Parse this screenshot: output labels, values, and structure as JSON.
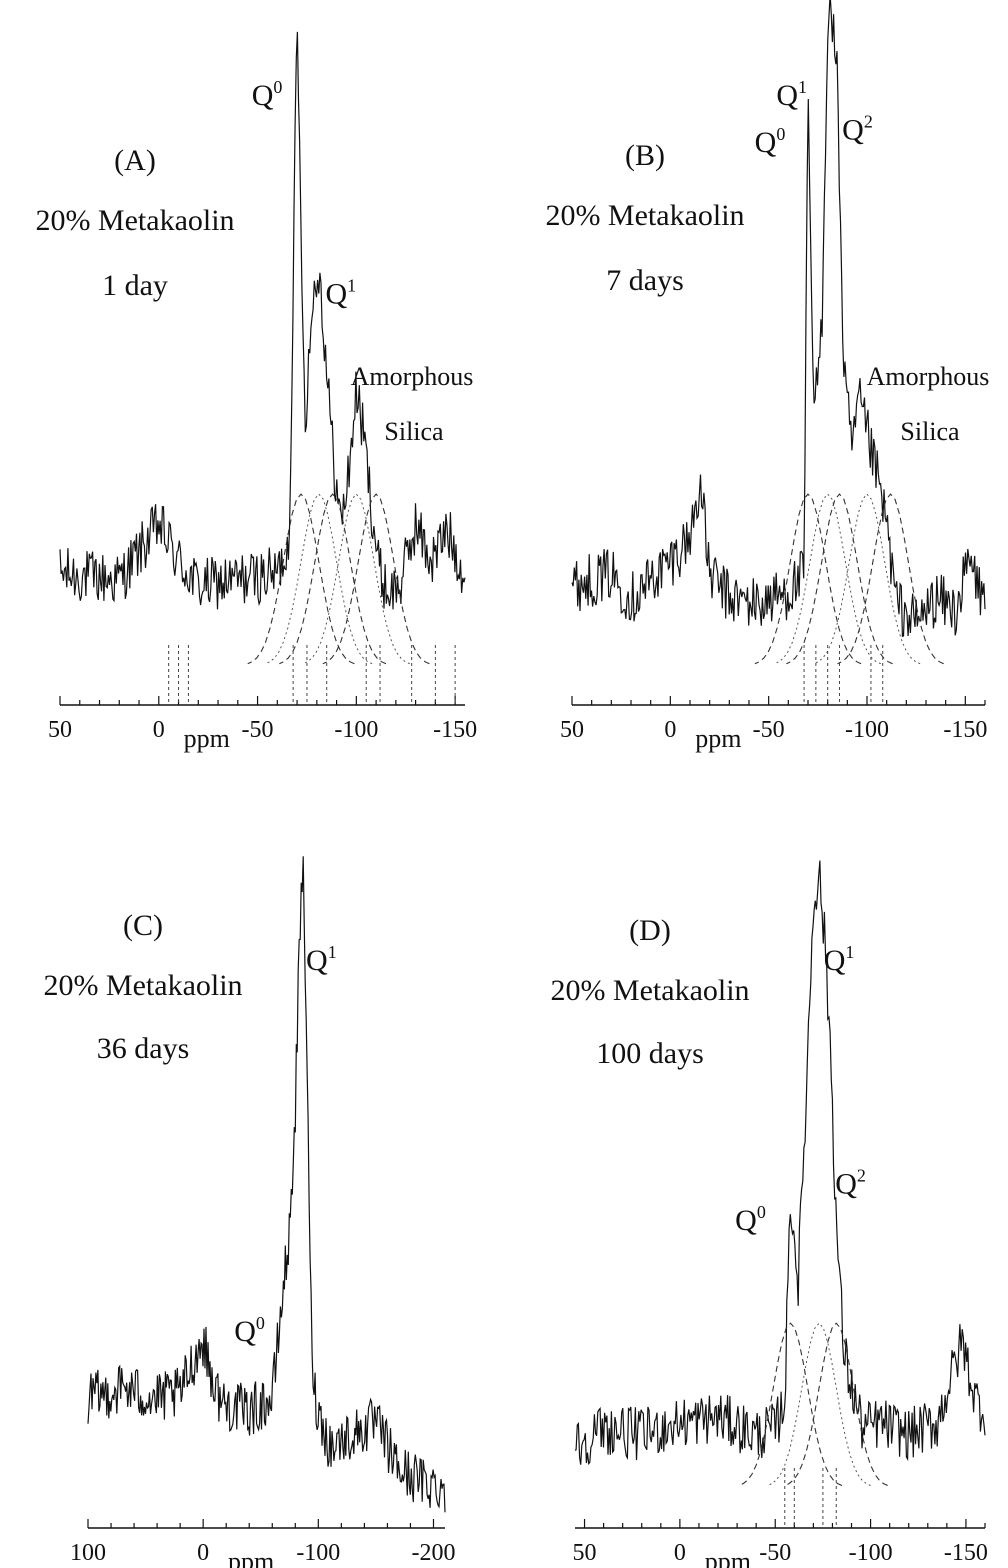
{
  "chart_data": [
    {
      "type": "line",
      "panel": "(A)",
      "label_lines": [
        "20% Metakaolin",
        "1 day"
      ],
      "xlabel": "ppm",
      "xlim": [
        50,
        -155
      ],
      "x_ticks": [
        50,
        0,
        -50,
        -100,
        -150
      ],
      "series": [
        {
          "x": [
            50,
            20,
            0,
            -10,
            -20,
            -40,
            -60,
            -66,
            -70,
            -74,
            -78,
            -81,
            -84,
            -88,
            -92,
            -96,
            -100,
            -104,
            -108,
            -112,
            -116,
            -122,
            -130,
            -138,
            -146,
            -155
          ],
          "y": [
            0.1,
            0.09,
            0.18,
            0.12,
            0.08,
            0.09,
            0.1,
            0.15,
            1.0,
            0.35,
            0.55,
            0.6,
            0.48,
            0.3,
            0.18,
            0.26,
            0.4,
            0.32,
            0.2,
            0.1,
            0.07,
            0.08,
            0.18,
            0.12,
            0.17,
            0.1
          ]
        }
      ],
      "peaks": [
        {
          "label": "Q",
          "sup": "0",
          "x": -70
        },
        {
          "label": "Q",
          "sup": "1",
          "x": -81
        }
      ],
      "annotation_lines": [
        "Amorphous",
        "Silica"
      ],
      "fit_components_center": [
        -72,
        -81,
        -88,
        -100,
        -110
      ],
      "marker_x": [
        -5,
        -10,
        -15,
        -68,
        -75,
        -85,
        -105,
        -112,
        -128,
        -140,
        -150
      ]
    },
    {
      "type": "line",
      "panel": "(B)",
      "label_lines": [
        "20% Metakaolin",
        "7 days"
      ],
      "xlabel": "ppm",
      "xlim": [
        50,
        -160
      ],
      "x_ticks": [
        50,
        0,
        -50,
        -100,
        -150
      ],
      "series": [
        {
          "x": [
            50,
            30,
            20,
            10,
            0,
            -10,
            -15,
            -20,
            -30,
            -45,
            -60,
            -68,
            -70,
            -73,
            -77,
            -80,
            -82,
            -85,
            -88,
            -92,
            -96,
            -100,
            -105,
            -110,
            -115,
            -125,
            -135,
            -145,
            -152,
            -160
          ],
          "y": [
            0.08,
            0.1,
            0.06,
            0.09,
            0.12,
            0.16,
            0.25,
            0.1,
            0.06,
            0.05,
            0.07,
            0.1,
            0.88,
            0.35,
            0.5,
            1.0,
            1.02,
            0.9,
            0.45,
            0.3,
            0.38,
            0.33,
            0.26,
            0.18,
            0.05,
            0.02,
            0.06,
            0.04,
            0.12,
            0.05
          ]
        }
      ],
      "peaks": [
        {
          "label": "Q",
          "sup": "0",
          "x": -70
        },
        {
          "label": "Q",
          "sup": "1",
          "x": -80
        },
        {
          "label": "Q",
          "sup": "2",
          "x": -85
        }
      ],
      "annotation_lines": [
        "Amorphous",
        "Silica"
      ],
      "fit_components_center": [
        -70,
        -80,
        -86,
        -100,
        -112
      ],
      "marker_x": [
        -68,
        -74,
        -80,
        -86,
        -102,
        -108
      ]
    },
    {
      "type": "line",
      "panel": "(C)",
      "label_lines": [
        "20% Metakaolin",
        "36 days"
      ],
      "xlabel": "ppm",
      "xlim": [
        100,
        -210
      ],
      "x_ticks": [
        100,
        0,
        -100,
        -200
      ],
      "series": [
        {
          "x": [
            100,
            70,
            40,
            20,
            10,
            0,
            -10,
            -15,
            -20,
            -40,
            -60,
            -70,
            -75,
            -80,
            -84,
            -87,
            -90,
            -93,
            -96,
            -100,
            -110,
            -130,
            -150,
            -170,
            -190,
            -210
          ],
          "y": [
            0.1,
            0.12,
            0.1,
            0.11,
            0.16,
            0.2,
            0.12,
            0.1,
            0.09,
            0.08,
            0.1,
            0.3,
            0.38,
            0.6,
            0.9,
            1.0,
            0.7,
            0.3,
            0.12,
            0.08,
            0.02,
            0.04,
            0.06,
            -0.02,
            -0.04,
            -0.05
          ]
        }
      ],
      "peaks": [
        {
          "label": "Q",
          "sup": "0",
          "x": -75
        },
        {
          "label": "Q",
          "sup": "1",
          "x": -87
        }
      ]
    },
    {
      "type": "line",
      "panel": "(D)",
      "label_lines": [
        "20% Metakaolin",
        "100 days"
      ],
      "xlabel": "ppm",
      "xlim": [
        55,
        -160
      ],
      "x_ticks": [
        50,
        0,
        -50,
        -100,
        -150
      ],
      "series": [
        {
          "x": [
            55,
            40,
            20,
            0,
            -20,
            -40,
            -50,
            -55,
            -58,
            -62,
            -66,
            -70,
            -73,
            -76,
            -79,
            -82,
            -86,
            -90,
            -96,
            -105,
            -120,
            -135,
            -148,
            -155,
            -160
          ],
          "y": [
            0.02,
            0.05,
            0.04,
            0.06,
            0.07,
            0.04,
            0.05,
            0.1,
            0.45,
            0.3,
            0.6,
            0.95,
            1.0,
            0.88,
            0.7,
            0.4,
            0.18,
            0.12,
            0.05,
            0.06,
            0.04,
            0.06,
            0.2,
            0.1,
            0.08
          ]
        }
      ],
      "peaks": [
        {
          "label": "Q",
          "sup": "0",
          "x": -58
        },
        {
          "label": "Q",
          "sup": "1",
          "x": -73
        },
        {
          "label": "Q",
          "sup": "2",
          "x": -79
        }
      ],
      "fit_components_center": [
        -58,
        -73,
        -82
      ],
      "marker_x": [
        -55,
        -60,
        -75,
        -82
      ]
    }
  ]
}
